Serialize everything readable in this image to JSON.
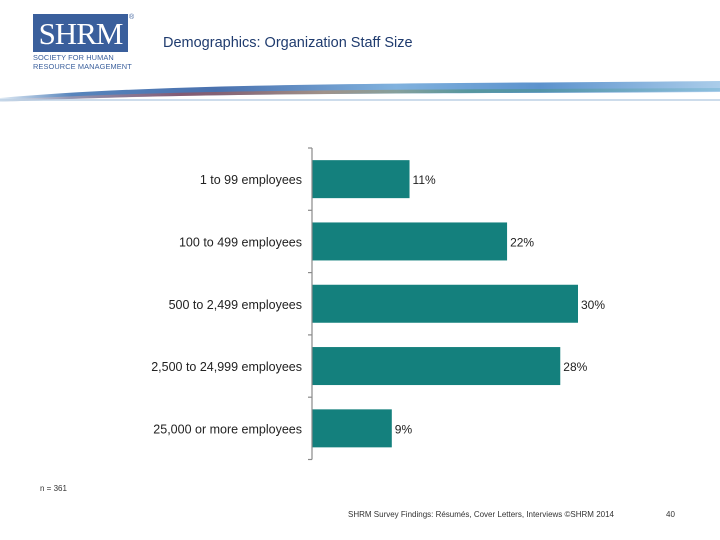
{
  "header": {
    "logo_text": "SHRM",
    "logo_subtitle_lines": [
      "SOCIETY FOR HUMAN",
      "RESOURCE MANAGEMENT"
    ],
    "title": "Demographics: Organization Staff Size"
  },
  "colors": {
    "bar": "#14807d",
    "axis": "#8a8a8a",
    "title": "#1f3b6e"
  },
  "chart_data": {
    "type": "bar",
    "orientation": "horizontal",
    "title": "Demographics: Organization Staff Size",
    "categories": [
      "1 to 99 employees",
      "100 to 499 employees",
      "500 to 2,499 employees",
      "2,500 to 24,999 employees",
      "25,000 or more employees"
    ],
    "values": [
      11,
      22,
      30,
      28,
      9
    ],
    "value_labels": [
      "11%",
      "22%",
      "30%",
      "28%",
      "9%"
    ],
    "unit": "%",
    "xlim": [
      0,
      30
    ],
    "xlabel": "",
    "ylabel": "",
    "grid": false,
    "legend": "none"
  },
  "footnote": "n = 361",
  "footer": {
    "source": "SHRM Survey Findings: Résumés, Cover Letters, Interviews ©SHRM 2014",
    "page_number": "40"
  }
}
